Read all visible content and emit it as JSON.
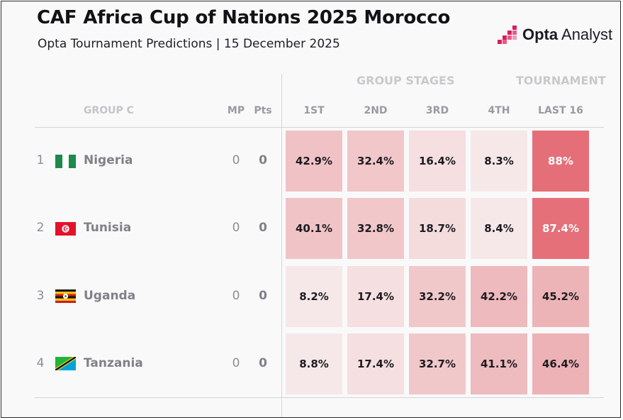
{
  "header": {
    "title": "CAF Africa Cup of Nations 2025 Morocco",
    "subtitle": "Opta Tournament Predictions | 15 December 2025",
    "logo_strong": "Opta",
    "logo_rest": " Analyst"
  },
  "table": {
    "section_group_stages": "GROUP STAGES",
    "section_tournament": "TOURNAMENT",
    "group_label": "GROUP C",
    "col_mp": "MP",
    "col_pts": "Pts",
    "col_1st": "1ST",
    "col_2nd": "2ND",
    "col_3rd": "3RD",
    "col_4th": "4TH",
    "col_last16": "LAST 16",
    "rows": [
      {
        "rank": "1",
        "team": "Nigeria",
        "flag_icon": "nigeria-flag-icon",
        "mp": "0",
        "pts": "0",
        "p1": "42.9%",
        "p2": "32.4%",
        "p3": "16.4%",
        "p4": "8.3%",
        "last16": "88%"
      },
      {
        "rank": "2",
        "team": "Tunisia",
        "flag_icon": "tunisia-flag-icon",
        "mp": "0",
        "pts": "0",
        "p1": "40.1%",
        "p2": "32.8%",
        "p3": "18.7%",
        "p4": "8.4%",
        "last16": "87.4%"
      },
      {
        "rank": "3",
        "team": "Uganda",
        "flag_icon": "uganda-flag-icon",
        "mp": "0",
        "pts": "0",
        "p1": "8.2%",
        "p2": "17.4%",
        "p3": "32.2%",
        "p4": "42.2%",
        "last16": "45.2%"
      },
      {
        "rank": "4",
        "team": "Tanzania",
        "flag_icon": "tanzania-flag-icon",
        "mp": "0",
        "pts": "0",
        "p1": "8.8%",
        "p2": "17.4%",
        "p3": "32.7%",
        "p4": "41.1%",
        "last16": "46.4%"
      }
    ]
  },
  "colors": {
    "cell_low": "#f6e3e4",
    "cell_mid": "#f1c9cb",
    "cell_high": "#edb2b6",
    "cell_max": "#e46f78",
    "brand": "#d6215f"
  }
}
